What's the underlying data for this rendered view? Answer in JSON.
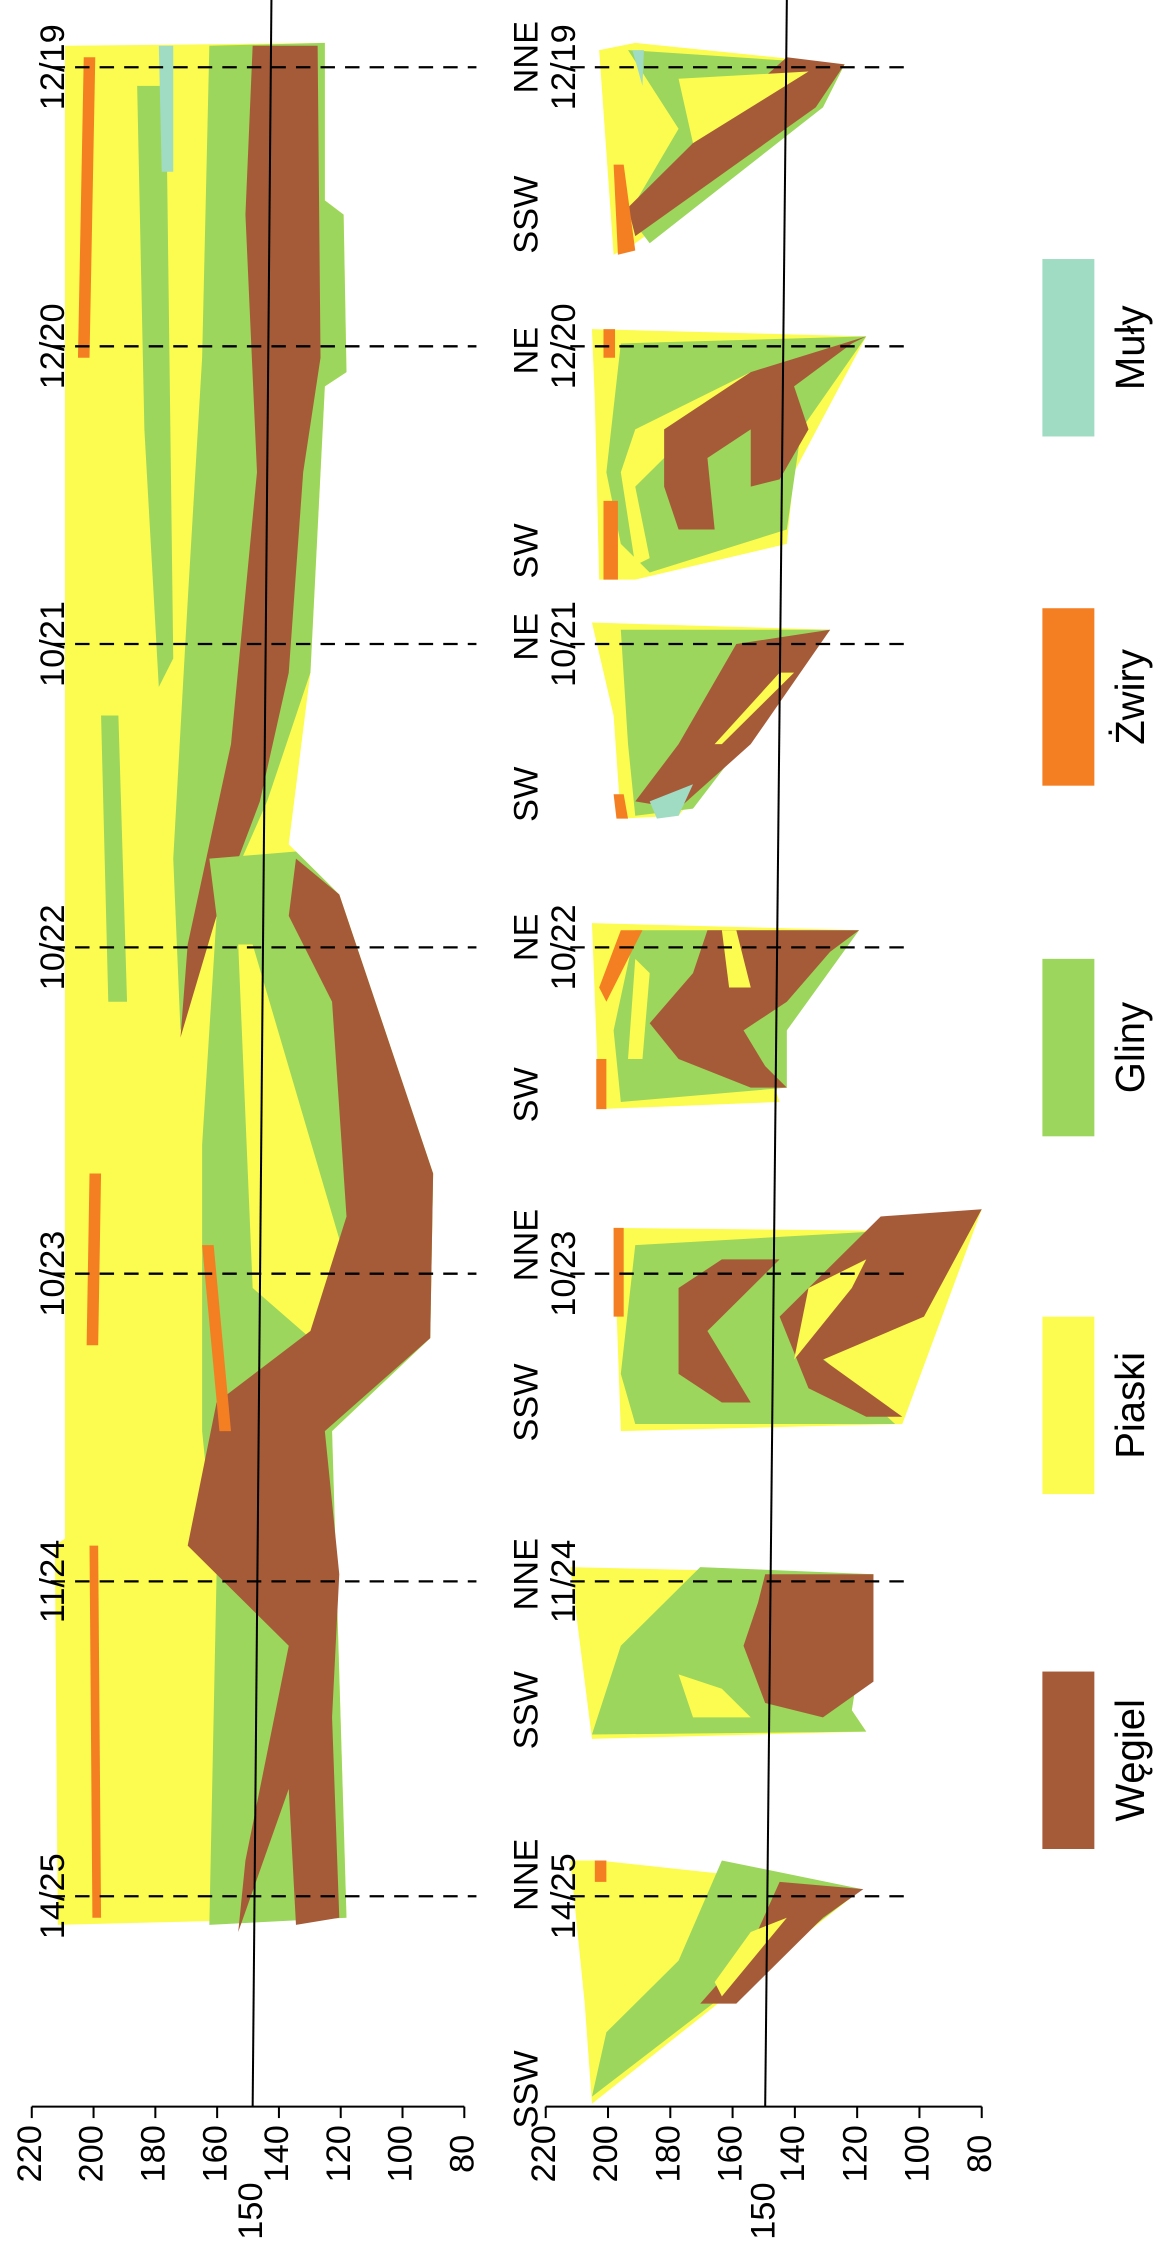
{
  "boreholes": [
    "14/25",
    "11/24",
    "10/23",
    "10/22",
    "10/21",
    "12/20",
    "12/19"
  ],
  "bottom_profiles": [
    {
      "left": "SSW",
      "right": "NNE"
    },
    {
      "left": "SSW",
      "right": "NNE"
    },
    {
      "left": "SSW",
      "right": "NNE"
    },
    {
      "left": "SW",
      "right": "NE"
    },
    {
      "left": "SW",
      "right": "NE"
    },
    {
      "left": "SW",
      "right": "NE"
    },
    {
      "left": "SSW",
      "right": "NNE"
    }
  ],
  "axes": [
    {
      "ticks": [
        220,
        200,
        180,
        160,
        140,
        120,
        100,
        80
      ],
      "reference": "150"
    },
    {
      "ticks": [
        220,
        200,
        180,
        160,
        140,
        120,
        100,
        80
      ],
      "reference": "150"
    }
  ],
  "legend": [
    {
      "label": "Węgiel",
      "color": "#a65b38"
    },
    {
      "label": "Piaski",
      "color": "#fcfc50"
    },
    {
      "label": "Gliny",
      "color": "#9cd65c"
    },
    {
      "label": "Żwiry",
      "color": "#f47f22"
    },
    {
      "label": "Muły",
      "color": "#a0dcc3"
    }
  ]
}
